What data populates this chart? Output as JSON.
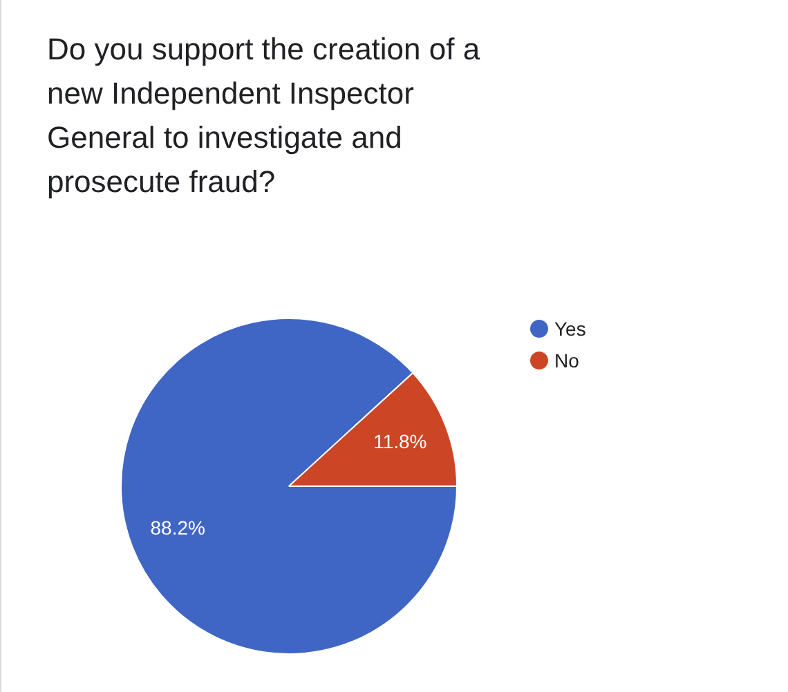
{
  "chart_data": {
    "type": "pie",
    "title": "Do you support the creation of a new Independent Inspector General to investigate and prosecute fraud?",
    "categories": [
      "Yes",
      "No"
    ],
    "values": [
      88.2,
      11.8
    ],
    "colors": [
      "#3f66c5",
      "#cc4626"
    ],
    "value_labels": [
      "88.2%",
      "11.8%"
    ],
    "legend": "right"
  }
}
